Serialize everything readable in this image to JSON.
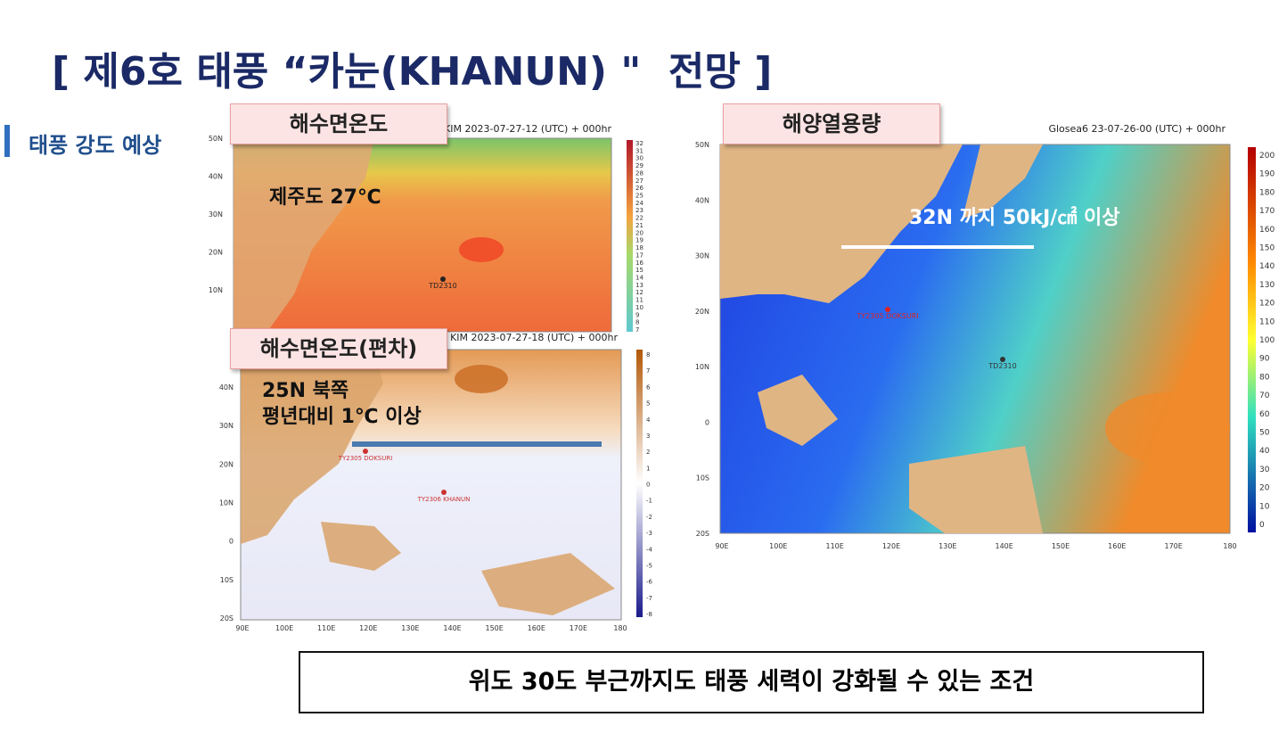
{
  "title": "[ 제6호 태풍 “카눈(KHANUN) \"  전망 ]",
  "section": "태풍 강도 예상",
  "panels": [
    {
      "label": "해수면온도",
      "header": "KIM 2023-07-27-12 (UTC) + 000hr",
      "annotations": [
        "제주도 27℃"
      ],
      "markers": [
        "TD2310"
      ],
      "ylabels": [
        "50N",
        "40N",
        "30N",
        "20N",
        "10N"
      ],
      "colorbar": [
        "32",
        "31",
        "30",
        "29",
        "28",
        "27",
        "26",
        "25",
        "24",
        "23",
        "22",
        "21",
        "20",
        "19",
        "18",
        "17",
        "16",
        "15",
        "14",
        "13",
        "12",
        "11",
        "10",
        "9",
        "8",
        "7"
      ]
    },
    {
      "label": "해수면온도(편차)",
      "header": "KIM 2023-07-27-18 (UTC) + 000hr",
      "annotations": [
        "25N 북쪽",
        "평년대비 1℃ 이상"
      ],
      "markers": [
        "TY2305 DOKSURI",
        "TY2306 KHANUN"
      ],
      "ylabels": [
        "40N",
        "30N",
        "20N",
        "10N",
        "0",
        "10S",
        "20S"
      ],
      "xlabels": [
        "90E",
        "100E",
        "110E",
        "120E",
        "130E",
        "140E",
        "150E",
        "160E",
        "170E",
        "180"
      ],
      "colorbar": [
        "8",
        "7",
        "6",
        "5",
        "4",
        "3",
        "2",
        "1",
        "0",
        "-1",
        "-2",
        "-3",
        "-4",
        "-5",
        "-6",
        "-7",
        "-8"
      ]
    },
    {
      "label": "해양열용량",
      "header": "Glosea6 23-07-26-00 (UTC) + 000hr",
      "annotations": [
        "32N 까지 50kJ/㎠ 이상"
      ],
      "markers": [
        "TY2305 DOKSURI",
        "TD2310"
      ],
      "ylabels": [
        "50N",
        "40N",
        "30N",
        "20N",
        "10N",
        "0",
        "10S",
        "20S"
      ],
      "xlabels": [
        "90E",
        "100E",
        "110E",
        "120E",
        "130E",
        "140E",
        "150E",
        "160E",
        "170E",
        "180"
      ],
      "colorbar": [
        "200",
        "190",
        "180",
        "170",
        "160",
        "150",
        "140",
        "130",
        "120",
        "110",
        "100",
        "90",
        "80",
        "70",
        "60",
        "50",
        "40",
        "30",
        "20",
        "10",
        "0"
      ]
    }
  ],
  "conclusion": "위도 30도 부근까지도 태풍 세력이 강화될 수 있는 조건"
}
